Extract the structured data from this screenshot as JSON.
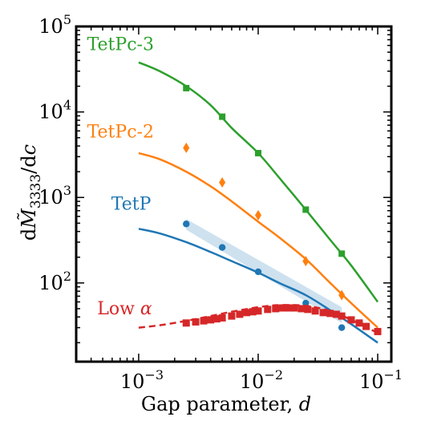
{
  "chart_data": {
    "type": "line",
    "xscale": "log",
    "yscale": "log",
    "xlim": [
      0.0003,
      0.13
    ],
    "ylim": [
      12,
      100000
    ],
    "xlabel": "Gap parameter, d",
    "ylabel": "dM̃3333/dc",
    "x_ticks": [
      {
        "value": 0.001,
        "base": "10",
        "exp": "−3"
      },
      {
        "value": 0.01,
        "base": "10",
        "exp": "−2"
      },
      {
        "value": 0.1,
        "base": "10",
        "exp": "−1"
      }
    ],
    "y_ticks": [
      {
        "value": 100,
        "base": "10",
        "exp": "2"
      },
      {
        "value": 1000,
        "base": "10",
        "exp": "3"
      },
      {
        "value": 10000,
        "base": "10",
        "exp": "4"
      },
      {
        "value": 100000,
        "base": "10",
        "exp": "5"
      }
    ],
    "grid": false,
    "series": [
      {
        "name": "TetPc-3",
        "color": "#2ca02c",
        "marker": "square",
        "curve_x": [
          0.001,
          0.0015,
          0.0025,
          0.004,
          0.006,
          0.01,
          0.015,
          0.025,
          0.04,
          0.06,
          0.1
        ],
        "curve_y": [
          38000,
          30000,
          20000,
          12000,
          6500,
          3300,
          1700,
          720,
          320,
          160,
          60
        ],
        "points_x": [
          0.0025,
          0.005,
          0.01,
          0.025,
          0.05
        ],
        "points_y": [
          19000,
          8800,
          3300,
          720,
          220
        ]
      },
      {
        "name": "TetPc-2",
        "color": "#ff7f0e",
        "marker": "diamond",
        "curve_x": [
          0.001,
          0.0015,
          0.0025,
          0.004,
          0.006,
          0.01,
          0.015,
          0.025,
          0.04,
          0.06,
          0.1
        ],
        "curve_y": [
          3300,
          2800,
          2000,
          1350,
          900,
          520,
          340,
          190,
          100,
          58,
          30
        ],
        "points_x": [
          0.0025,
          0.005,
          0.01,
          0.025,
          0.05
        ],
        "points_y": [
          3800,
          1500,
          620,
          180,
          72
        ]
      },
      {
        "name": "TetP",
        "color": "#1f77b4",
        "marker": "circle",
        "curve_x": [
          0.001,
          0.0015,
          0.0025,
          0.004,
          0.006,
          0.01,
          0.015,
          0.025,
          0.04,
          0.06,
          0.1
        ],
        "curve_y": [
          430,
          380,
          300,
          230,
          180,
          132,
          100,
          72,
          48,
          33,
          20
        ],
        "points_x": [
          0.0025,
          0.005,
          0.01,
          0.025,
          0.05
        ],
        "points_y": [
          490,
          260,
          135,
          58,
          30
        ],
        "band_x": [
          0.0025,
          0.05
        ],
        "band_upper": [
          560,
          52
        ],
        "band_lower": [
          420,
          34
        ]
      },
      {
        "name": "Low α",
        "color": "#d62728",
        "marker": "square",
        "linestyle": "dashed",
        "curve_x": [
          0.001,
          0.0015,
          0.0025,
          0.004,
          0.006,
          0.01,
          0.015,
          0.025,
          0.04,
          0.06,
          0.1
        ],
        "curve_y": [
          30,
          32,
          36,
          41,
          46,
          52,
          55,
          54,
          47,
          37,
          26
        ],
        "points_x": [
          0.0025,
          0.003,
          0.0035,
          0.004,
          0.0045,
          0.005,
          0.006,
          0.007,
          0.008,
          0.009,
          0.01,
          0.012,
          0.014,
          0.016,
          0.018,
          0.02,
          0.023,
          0.026,
          0.03,
          0.035,
          0.04,
          0.045,
          0.05,
          0.06,
          0.07,
          0.08,
          0.1
        ],
        "points_y": [
          34,
          35,
          36,
          37,
          38,
          39,
          41,
          43,
          45,
          46,
          47,
          49,
          50,
          51,
          51,
          51,
          50,
          49,
          47,
          45,
          44,
          43,
          41,
          37,
          34,
          31,
          27
        ]
      }
    ]
  }
}
